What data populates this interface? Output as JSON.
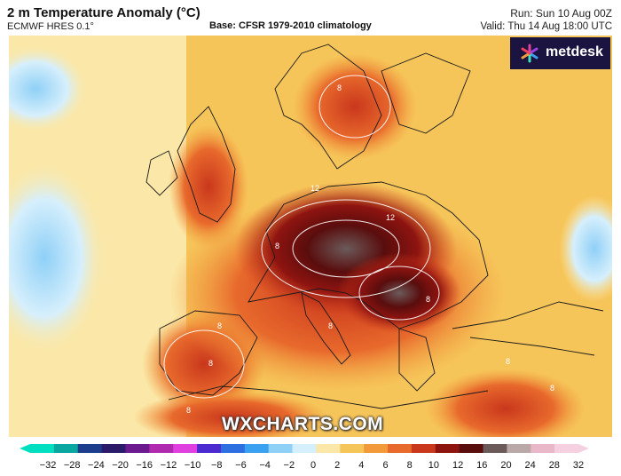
{
  "header": {
    "title": "2 m Temperature Anomaly (°C)",
    "model": "ECMWF HRES 0.1°",
    "base": "Base: CFSR 1979-2010 climatology",
    "run": "Run: Sun 10 Aug 00Z",
    "valid": "Valid: Thu 14 Aug 18:00 UTC"
  },
  "branding": {
    "logo_text": "metdesk",
    "watermark": "WXCHARTS.COM",
    "logo_bg": "#1b1440"
  },
  "map": {
    "contour_labels": [
      "8",
      "8",
      "12",
      "12",
      "8",
      "8",
      "8",
      "8",
      "8",
      "8",
      "8"
    ],
    "ocean_color": "#f4d27a",
    "anomaly_peak_color": "#6b0c0c"
  },
  "legend": {
    "ticks": [
      "−32",
      "−28",
      "−24",
      "−20",
      "−16",
      "−12",
      "−10",
      "−8",
      "−6",
      "−4",
      "−2",
      "0",
      "2",
      "4",
      "6",
      "8",
      "10",
      "12",
      "16",
      "20",
      "24",
      "28",
      "32"
    ],
    "colors": [
      "#00e0c0",
      "#0aa6a0",
      "#1c3d8c",
      "#2b1a6a",
      "#6a1a8e",
      "#b02ab0",
      "#e040e0",
      "#4b2ad0",
      "#2d6fe0",
      "#3aa0f0",
      "#8fd0f7",
      "#d6effc",
      "#fbe8a8",
      "#f6c55a",
      "#f29a3a",
      "#e8692c",
      "#c9371c",
      "#8e1410",
      "#5a0d0d",
      "#6b5a5a",
      "#b8a8a8",
      "#e8b8c8",
      "#f4d0e0"
    ]
  }
}
